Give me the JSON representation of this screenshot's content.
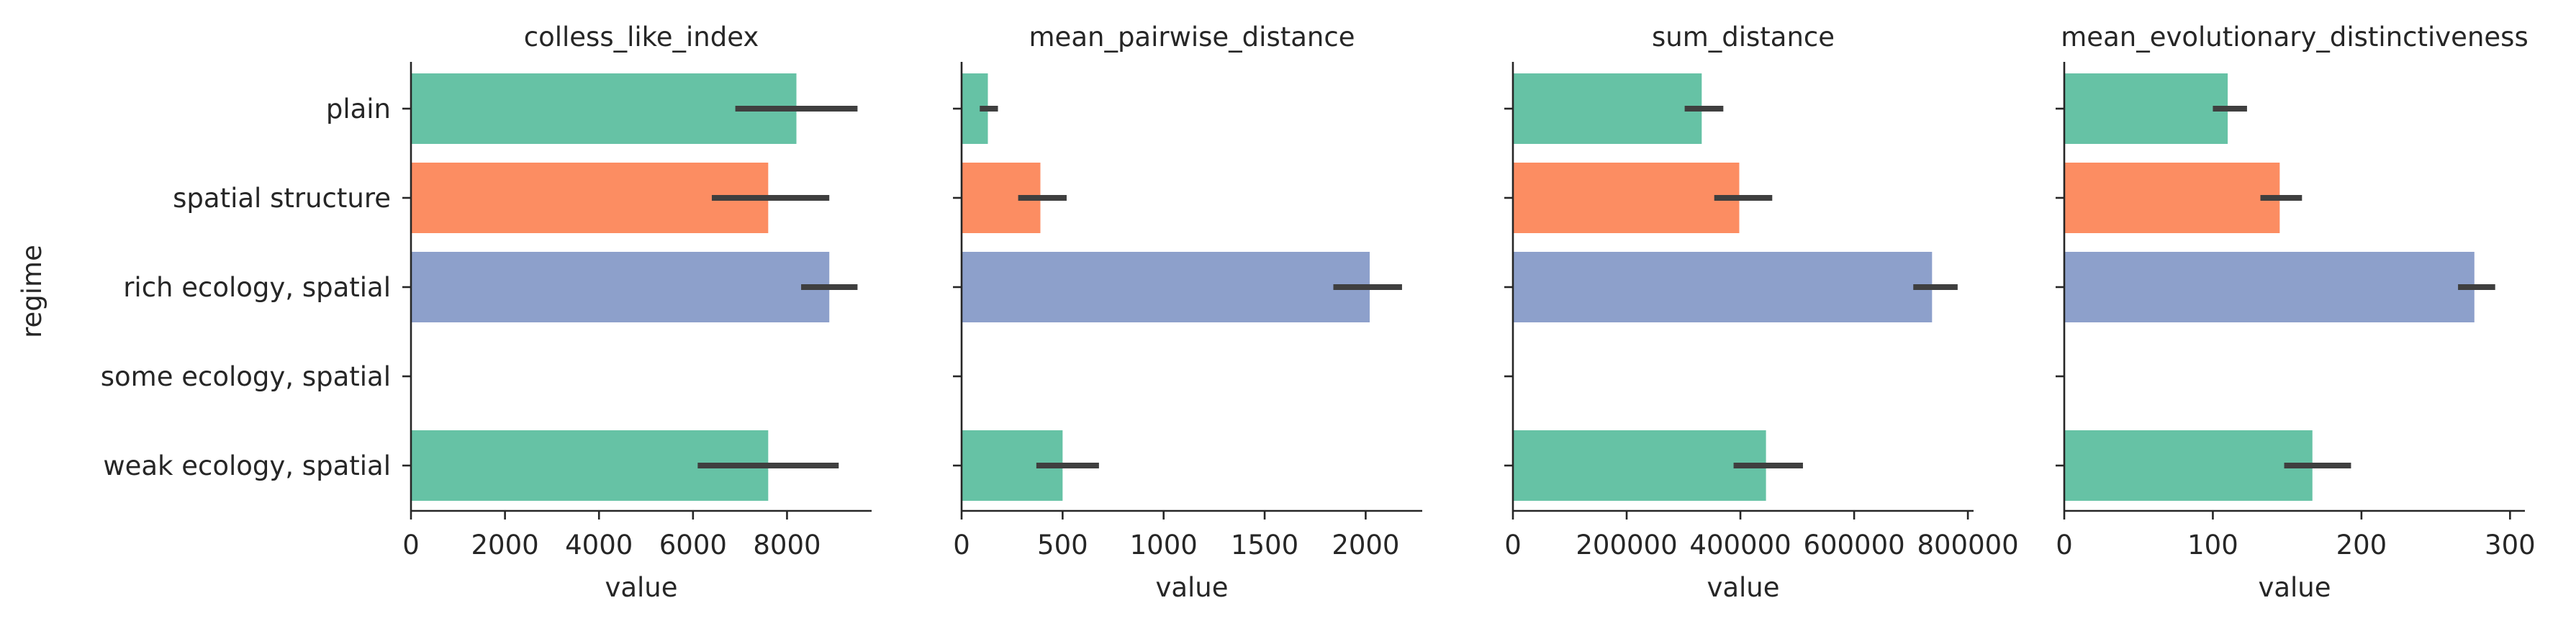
{
  "figure": {
    "ylabel": "regime",
    "categories": [
      "plain",
      "spatial structure",
      "rich ecology, spatial",
      "some ecology, spatial",
      "weak ecology, spatial"
    ],
    "palette": [
      "#66c2a5",
      "#fc8d62",
      "#8da0cb",
      "#e78ac3",
      "#66c2a5"
    ]
  },
  "chart_data": [
    {
      "type": "bar",
      "title": "colless_like_index",
      "xlabel": "value",
      "ylabel": "regime",
      "orientation": "horizontal",
      "categories": [
        "plain",
        "spatial structure",
        "rich ecology, spatial",
        "some ecology, spatial",
        "weak ecology, spatial"
      ],
      "values": [
        8200,
        7600,
        8900,
        null,
        7600
      ],
      "error_low": [
        6900,
        6400,
        8300,
        null,
        6100
      ],
      "error_high": [
        9500,
        8900,
        9500,
        null,
        9100
      ],
      "xlim": [
        0,
        9800
      ],
      "xticks": [
        0,
        2000,
        4000,
        6000,
        8000
      ],
      "xtick_labels": [
        "0",
        "2000",
        "4000",
        "6000",
        "8000"
      ]
    },
    {
      "type": "bar",
      "title": "mean_pairwise_distance",
      "xlabel": "value",
      "orientation": "horizontal",
      "categories": [
        "plain",
        "spatial structure",
        "rich ecology, spatial",
        "some ecology, spatial",
        "weak ecology, spatial"
      ],
      "values": [
        130,
        390,
        2020,
        null,
        500
      ],
      "error_low": [
        90,
        280,
        1840,
        null,
        370
      ],
      "error_high": [
        180,
        520,
        2180,
        null,
        680
      ],
      "xlim": [
        0,
        2280
      ],
      "xticks": [
        0,
        500,
        1000,
        1500,
        2000
      ],
      "xtick_labels": [
        "0",
        "500",
        "1000",
        "1500",
        "2000"
      ]
    },
    {
      "type": "bar",
      "title": "sum_distance",
      "xlabel": "value",
      "orientation": "horizontal",
      "categories": [
        "plain",
        "spatial structure",
        "rich ecology, spatial",
        "some ecology, spatial",
        "weak ecology, spatial"
      ],
      "values": [
        332000,
        398000,
        737000,
        null,
        445000
      ],
      "error_low": [
        302000,
        354000,
        704000,
        null,
        388000
      ],
      "error_high": [
        370000,
        456000,
        782000,
        null,
        510000
      ],
      "xlim": [
        0,
        810000
      ],
      "xticks": [
        0,
        200000,
        400000,
        600000,
        800000
      ],
      "xtick_labels": [
        "0",
        "200000",
        "400000",
        "600000",
        "800000"
      ]
    },
    {
      "type": "bar",
      "title": "mean_evolutionary_distinctiveness",
      "xlabel": "value",
      "orientation": "horizontal",
      "categories": [
        "plain",
        "spatial structure",
        "rich ecology, spatial",
        "some ecology, spatial",
        "weak ecology, spatial"
      ],
      "values": [
        110,
        145,
        276,
        null,
        167
      ],
      "error_low": [
        100,
        132,
        265,
        null,
        148
      ],
      "error_high": [
        123,
        160,
        290,
        null,
        193
      ],
      "xlim": [
        0,
        310
      ],
      "xticks": [
        0,
        100,
        200,
        300
      ],
      "xtick_labels": [
        "0",
        "100",
        "200",
        "300"
      ]
    }
  ]
}
